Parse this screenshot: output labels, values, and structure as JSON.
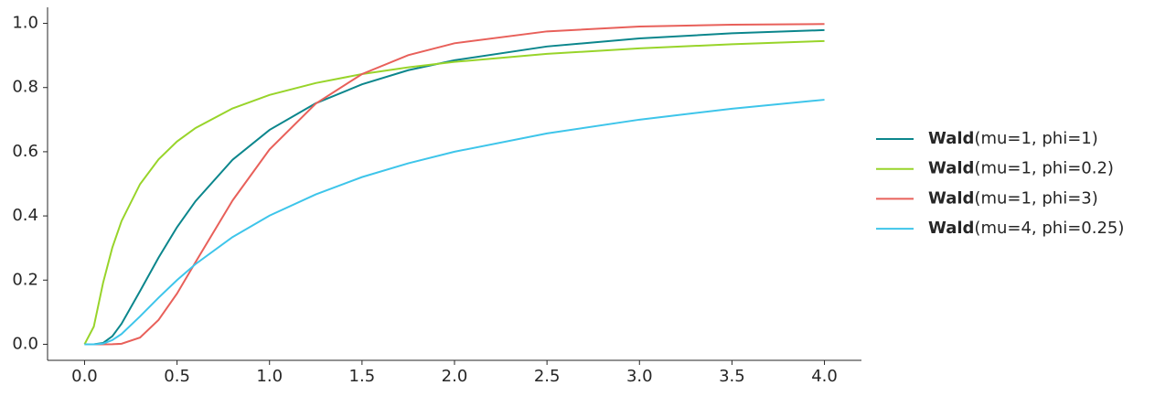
{
  "chart_data": {
    "type": "line",
    "x": [
      0,
      0.05,
      0.1,
      0.15,
      0.2,
      0.3,
      0.4,
      0.5,
      0.6,
      0.8,
      1.0,
      1.25,
      1.5,
      1.75,
      2.0,
      2.5,
      3.0,
      3.5,
      4.0
    ],
    "series": [
      {
        "name": "Wald(mu=1, phi=1)",
        "color": "#0b868c",
        "values": [
          0,
          0,
          0.004,
          0.025,
          0.064,
          0.166,
          0.27,
          0.365,
          0.446,
          0.575,
          0.668,
          0.751,
          0.81,
          0.854,
          0.885,
          0.928,
          0.953,
          0.969,
          0.979
        ]
      },
      {
        "name": "Wald(mu=1, phi=0.2)",
        "color": "#98d42a",
        "values": [
          0,
          0.055,
          0.191,
          0.301,
          0.384,
          0.499,
          0.576,
          0.632,
          0.674,
          0.735,
          0.777,
          0.814,
          0.842,
          0.863,
          0.88,
          0.905,
          0.922,
          0.935,
          0.945
        ]
      },
      {
        "name": "Wald(mu=1, phi=3)",
        "color": "#e8605a",
        "values": [
          0,
          0,
          0,
          0.0001,
          0.0017,
          0.021,
          0.076,
          0.158,
          0.256,
          0.448,
          0.607,
          0.75,
          0.842,
          0.901,
          0.938,
          0.975,
          0.99,
          0.996,
          0.998
        ]
      },
      {
        "name": "Wald(mu=4, phi=0.25)",
        "color": "#3ec5ea",
        "values": [
          0,
          0,
          0.002,
          0.013,
          0.032,
          0.087,
          0.145,
          0.2,
          0.25,
          0.334,
          0.401,
          0.467,
          0.521,
          0.564,
          0.6,
          0.657,
          0.7,
          0.734,
          0.762
        ]
      }
    ],
    "xlim": [
      -0.2,
      4.2
    ],
    "xticks": [
      {
        "value": 0,
        "label": "0.0"
      },
      {
        "value": 0.5,
        "label": "0.5"
      },
      {
        "value": 1,
        "label": "1.0"
      },
      {
        "value": 1.5,
        "label": "1.5"
      },
      {
        "value": 2,
        "label": "2.0"
      },
      {
        "value": 2.5,
        "label": "2.5"
      },
      {
        "value": 3,
        "label": "3.0"
      },
      {
        "value": 3.5,
        "label": "3.5"
      },
      {
        "value": 4,
        "label": "4.0"
      }
    ],
    "ylim": [
      -0.05,
      1.05
    ],
    "yticks": [
      {
        "value": 0,
        "label": "0.0"
      },
      {
        "value": 0.2,
        "label": "0.2"
      },
      {
        "value": 0.4,
        "label": "0.4"
      },
      {
        "value": 0.6,
        "label": "0.6"
      },
      {
        "value": 0.8,
        "label": "0.8"
      },
      {
        "value": 1,
        "label": "1.0"
      }
    ],
    "legend": "right"
  }
}
